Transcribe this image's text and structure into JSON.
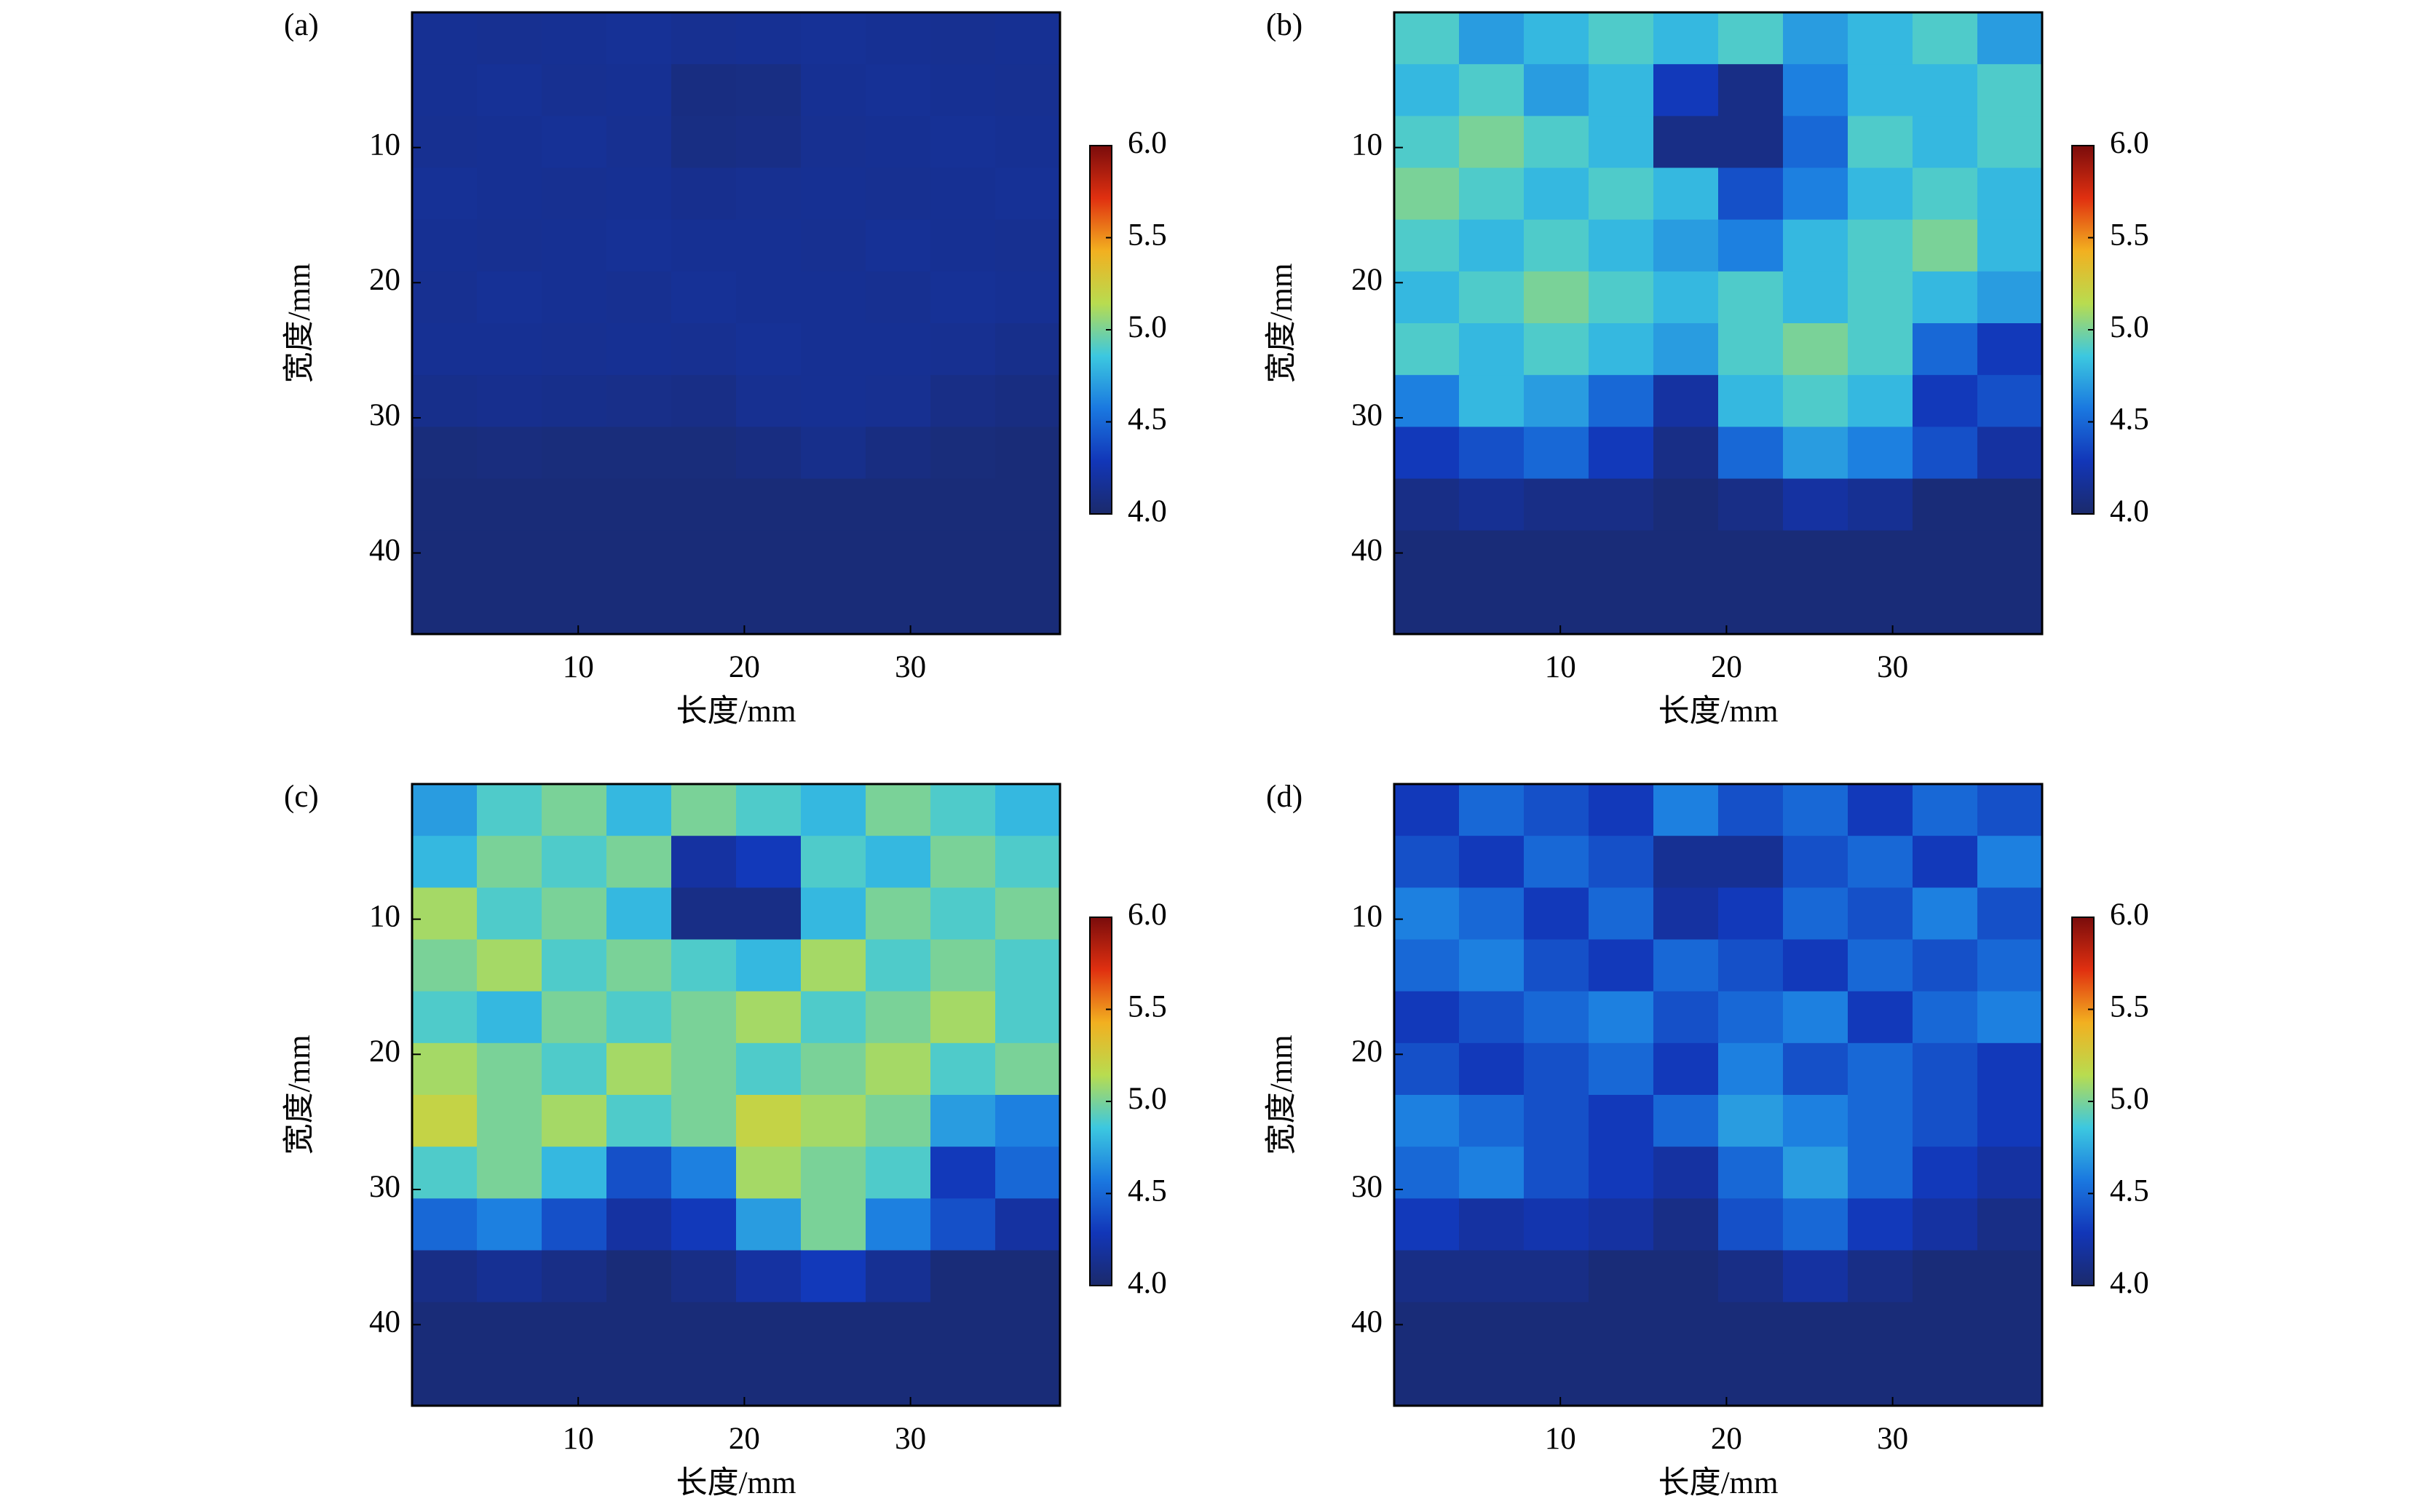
{
  "chart_data": [
    {
      "type": "heatmap",
      "label": "(a)",
      "xlabel": "长度/mm",
      "ylabel": "宽度/mm",
      "xlim": [
        0,
        39
      ],
      "ylim": [
        0,
        46
      ],
      "y_inverted": true,
      "xticks": [
        10,
        20,
        30
      ],
      "yticks": [
        10,
        20,
        30,
        40
      ],
      "colormap": [
        "#1b2a6b",
        "#1236b8",
        "#1a78e0",
        "#3cc8e0",
        "#b8dc50",
        "#f2b020",
        "#e03010",
        "#7a0c0c"
      ],
      "colorbar_lim": [
        4,
        6
      ],
      "colorbar_ticks": [
        {
          "value": 4,
          "label": "4.0"
        },
        {
          "value": 4.5,
          "label": "4.5"
        },
        {
          "value": 5,
          "label": "5.0"
        },
        {
          "value": 5.5,
          "label": "5.5"
        },
        {
          "value": 6,
          "label": "6.0"
        }
      ],
      "z": [
        [
          4.15,
          4.14,
          4.15,
          4.16,
          4.14,
          4.15,
          4.16,
          4.15,
          4.14,
          4.15
        ],
        [
          4.15,
          4.16,
          4.14,
          4.15,
          4.08,
          4.09,
          4.15,
          4.16,
          4.15,
          4.14
        ],
        [
          4.14,
          4.15,
          4.16,
          4.14,
          4.09,
          4.1,
          4.14,
          4.15,
          4.16,
          4.15
        ],
        [
          4.16,
          4.15,
          4.14,
          4.15,
          4.13,
          4.14,
          4.15,
          4.14,
          4.15,
          4.16
        ],
        [
          4.15,
          4.14,
          4.15,
          4.16,
          4.15,
          4.15,
          4.14,
          4.16,
          4.15,
          4.14
        ],
        [
          4.14,
          4.16,
          4.15,
          4.14,
          4.16,
          4.15,
          4.15,
          4.14,
          4.16,
          4.15
        ],
        [
          4.15,
          4.15,
          4.14,
          4.15,
          4.14,
          4.16,
          4.15,
          4.15,
          4.14,
          4.12
        ],
        [
          4.12,
          4.13,
          4.12,
          4.11,
          4.1,
          4.14,
          4.15,
          4.14,
          4.1,
          4.08
        ],
        [
          4.06,
          4.07,
          4.06,
          4.06,
          4.06,
          4.08,
          4.12,
          4.08,
          4.06,
          4.05
        ],
        [
          4.05,
          4.05,
          4.05,
          4.05,
          4.05,
          4.05,
          4.05,
          4.05,
          4.05,
          4.05
        ],
        [
          4.05,
          4.05,
          4.05,
          4.05,
          4.05,
          4.05,
          4.05,
          4.05,
          4.05,
          4.05
        ],
        [
          4.05,
          4.05,
          4.05,
          4.05,
          4.05,
          4.05,
          4.05,
          4.05,
          4.05,
          4.05
        ]
      ]
    },
    {
      "type": "heatmap",
      "label": "(b)",
      "xlabel": "长度/mm",
      "ylabel": "宽度/mm",
      "xlim": [
        0,
        39
      ],
      "ylim": [
        0,
        46
      ],
      "y_inverted": true,
      "xticks": [
        10,
        20,
        30
      ],
      "yticks": [
        10,
        20,
        30,
        40
      ],
      "colormap": [
        "#1b2a6b",
        "#1236b8",
        "#1a78e0",
        "#3cc8e0",
        "#b8dc50",
        "#f2b020",
        "#e03010",
        "#7a0c0c"
      ],
      "colorbar_lim": [
        4,
        6
      ],
      "colorbar_ticks": [
        {
          "value": 4,
          "label": "4.0"
        },
        {
          "value": 4.5,
          "label": "4.5"
        },
        {
          "value": 5,
          "label": "5.0"
        },
        {
          "value": 5.5,
          "label": "5.5"
        },
        {
          "value": 6,
          "label": "6.0"
        }
      ],
      "z": [
        [
          4.9,
          4.7,
          4.8,
          4.9,
          4.8,
          4.9,
          4.7,
          4.8,
          4.9,
          4.7
        ],
        [
          4.8,
          4.9,
          4.7,
          4.8,
          4.3,
          4.1,
          4.6,
          4.8,
          4.8,
          4.9
        ],
        [
          4.9,
          5.0,
          4.9,
          4.8,
          4.1,
          4.1,
          4.5,
          4.9,
          4.8,
          4.9
        ],
        [
          5.0,
          4.9,
          4.8,
          4.9,
          4.8,
          4.4,
          4.6,
          4.8,
          4.9,
          4.8
        ],
        [
          4.9,
          4.8,
          4.9,
          4.8,
          4.7,
          4.6,
          4.8,
          4.9,
          5.0,
          4.8
        ],
        [
          4.8,
          4.9,
          5.0,
          4.9,
          4.8,
          4.9,
          4.8,
          4.9,
          4.8,
          4.7
        ],
        [
          4.9,
          4.8,
          4.9,
          4.8,
          4.7,
          4.9,
          5.0,
          4.9,
          4.5,
          4.3
        ],
        [
          4.6,
          4.8,
          4.7,
          4.5,
          4.2,
          4.8,
          4.9,
          4.8,
          4.3,
          4.4
        ],
        [
          4.3,
          4.4,
          4.5,
          4.3,
          4.1,
          4.5,
          4.7,
          4.6,
          4.4,
          4.2
        ],
        [
          4.1,
          4.15,
          4.1,
          4.1,
          4.05,
          4.1,
          4.2,
          4.15,
          4.05,
          4.05
        ],
        [
          4.05,
          4.05,
          4.05,
          4.05,
          4.05,
          4.05,
          4.05,
          4.05,
          4.05,
          4.05
        ],
        [
          4.05,
          4.05,
          4.05,
          4.05,
          4.05,
          4.05,
          4.05,
          4.05,
          4.05,
          4.05
        ]
      ]
    },
    {
      "type": "heatmap",
      "label": "(c)",
      "xlabel": "长度/mm",
      "ylabel": "宽度/mm",
      "xlim": [
        0,
        39
      ],
      "ylim": [
        0,
        46
      ],
      "y_inverted": true,
      "xticks": [
        10,
        20,
        30
      ],
      "yticks": [
        10,
        20,
        30,
        40
      ],
      "colormap": [
        "#1b2a6b",
        "#1236b8",
        "#1a78e0",
        "#3cc8e0",
        "#b8dc50",
        "#f2b020",
        "#e03010",
        "#7a0c0c"
      ],
      "colorbar_lim": [
        4,
        6
      ],
      "colorbar_ticks": [
        {
          "value": 4,
          "label": "4.0"
        },
        {
          "value": 4.5,
          "label": "4.5"
        },
        {
          "value": 5,
          "label": "5.0"
        },
        {
          "value": 5.5,
          "label": "5.5"
        },
        {
          "value": 6,
          "label": "6.0"
        }
      ],
      "z": [
        [
          4.7,
          4.9,
          5.0,
          4.8,
          5.0,
          4.9,
          4.8,
          5.0,
          4.9,
          4.8
        ],
        [
          4.8,
          5.0,
          4.9,
          5.0,
          4.2,
          4.3,
          4.9,
          4.8,
          5.0,
          4.9
        ],
        [
          5.1,
          4.9,
          5.0,
          4.8,
          4.1,
          4.1,
          4.8,
          5.0,
          4.9,
          5.0
        ],
        [
          5.0,
          5.1,
          4.9,
          5.0,
          4.9,
          4.8,
          5.1,
          4.9,
          5.0,
          4.9
        ],
        [
          4.9,
          4.8,
          5.0,
          4.9,
          5.0,
          5.1,
          4.9,
          5.0,
          5.1,
          4.9
        ],
        [
          5.1,
          5.0,
          4.9,
          5.1,
          5.0,
          4.9,
          5.0,
          5.1,
          4.9,
          5.0
        ],
        [
          5.2,
          5.0,
          5.1,
          4.9,
          5.0,
          5.2,
          5.1,
          5.0,
          4.7,
          4.6
        ],
        [
          4.9,
          5.0,
          4.8,
          4.4,
          4.6,
          5.1,
          5.0,
          4.9,
          4.3,
          4.5
        ],
        [
          4.5,
          4.6,
          4.4,
          4.2,
          4.3,
          4.7,
          5.0,
          4.6,
          4.4,
          4.2
        ],
        [
          4.1,
          4.15,
          4.1,
          4.05,
          4.1,
          4.2,
          4.3,
          4.15,
          4.05,
          4.05
        ],
        [
          4.05,
          4.05,
          4.05,
          4.05,
          4.05,
          4.05,
          4.05,
          4.05,
          4.05,
          4.05
        ],
        [
          4.05,
          4.05,
          4.05,
          4.05,
          4.05,
          4.05,
          4.05,
          4.05,
          4.05,
          4.05
        ]
      ]
    },
    {
      "type": "heatmap",
      "label": "(d)",
      "xlabel": "长度/mm",
      "ylabel": "宽度/mm",
      "xlim": [
        0,
        39
      ],
      "ylim": [
        0,
        46
      ],
      "y_inverted": true,
      "xticks": [
        10,
        20,
        30
      ],
      "yticks": [
        10,
        20,
        30,
        40
      ],
      "colormap": [
        "#1b2a6b",
        "#1236b8",
        "#1a78e0",
        "#3cc8e0",
        "#b8dc50",
        "#f2b020",
        "#e03010",
        "#7a0c0c"
      ],
      "colorbar_lim": [
        4,
        6
      ],
      "colorbar_ticks": [
        {
          "value": 4,
          "label": "4.0"
        },
        {
          "value": 4.5,
          "label": "4.5"
        },
        {
          "value": 5,
          "label": "5.0"
        },
        {
          "value": 5.5,
          "label": "5.5"
        },
        {
          "value": 6,
          "label": "6.0"
        }
      ],
      "z": [
        [
          4.3,
          4.5,
          4.4,
          4.3,
          4.6,
          4.4,
          4.5,
          4.3,
          4.5,
          4.4
        ],
        [
          4.4,
          4.3,
          4.5,
          4.4,
          4.15,
          4.15,
          4.4,
          4.5,
          4.3,
          4.6
        ],
        [
          4.6,
          4.5,
          4.3,
          4.5,
          4.2,
          4.3,
          4.5,
          4.4,
          4.6,
          4.4
        ],
        [
          4.5,
          4.6,
          4.4,
          4.3,
          4.5,
          4.4,
          4.3,
          4.5,
          4.4,
          4.5
        ],
        [
          4.3,
          4.4,
          4.5,
          4.6,
          4.4,
          4.5,
          4.6,
          4.3,
          4.5,
          4.6
        ],
        [
          4.4,
          4.3,
          4.4,
          4.5,
          4.3,
          4.6,
          4.4,
          4.5,
          4.4,
          4.3
        ],
        [
          4.6,
          4.5,
          4.4,
          4.3,
          4.5,
          4.7,
          4.6,
          4.5,
          4.4,
          4.3
        ],
        [
          4.5,
          4.6,
          4.4,
          4.3,
          4.2,
          4.5,
          4.7,
          4.5,
          4.3,
          4.2
        ],
        [
          4.3,
          4.2,
          4.25,
          4.2,
          4.1,
          4.4,
          4.5,
          4.3,
          4.2,
          4.1
        ],
        [
          4.1,
          4.1,
          4.1,
          4.05,
          4.05,
          4.1,
          4.2,
          4.1,
          4.05,
          4.05
        ],
        [
          4.05,
          4.05,
          4.05,
          4.05,
          4.05,
          4.05,
          4.05,
          4.05,
          4.05,
          4.05
        ],
        [
          4.05,
          4.05,
          4.05,
          4.05,
          4.05,
          4.05,
          4.05,
          4.05,
          4.05,
          4.05
        ]
      ]
    }
  ]
}
